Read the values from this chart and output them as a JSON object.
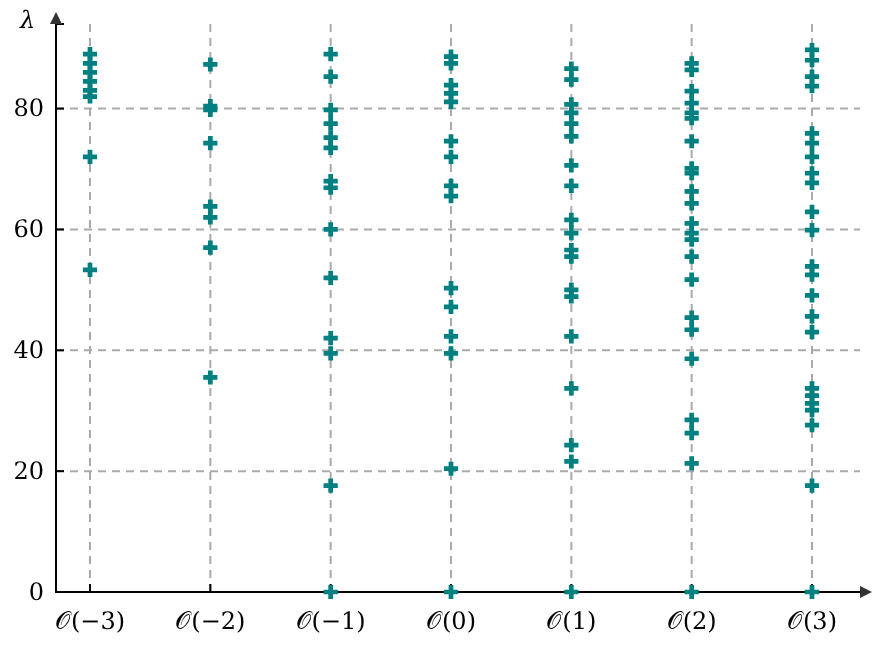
{
  "chart_data": {
    "type": "scatter",
    "ylabel": "λ",
    "categories": [
      "𝒪(−3)",
      "𝒪(−2)",
      "𝒪(−1)",
      "𝒪(0)",
      "𝒪(1)",
      "𝒪(2)",
      "𝒪(3)"
    ],
    "ylim": [
      0,
      94
    ],
    "yticks": [
      0,
      20,
      40,
      60,
      80
    ],
    "grid": true,
    "marker": "cross",
    "series": [
      {
        "color": "#008080",
        "x": [
          "𝒪(−3)",
          "𝒪(−3)",
          "𝒪(−3)",
          "𝒪(−3)",
          "𝒪(−3)",
          "𝒪(−3)",
          "𝒪(−3)",
          "𝒪(−3)",
          "𝒪(−2)",
          "𝒪(−2)",
          "𝒪(−2)",
          "𝒪(−2)",
          "𝒪(−2)",
          "𝒪(−2)",
          "𝒪(−2)",
          "𝒪(−2)",
          "𝒪(−1)",
          "𝒪(−1)",
          "𝒪(−1)",
          "𝒪(−1)",
          "𝒪(−1)",
          "𝒪(−1)",
          "𝒪(−1)",
          "𝒪(−1)",
          "𝒪(−1)",
          "𝒪(−1)",
          "𝒪(−1)",
          "𝒪(−1)",
          "𝒪(−1)",
          "𝒪(−1)",
          "𝒪(0)",
          "𝒪(0)",
          "𝒪(0)",
          "𝒪(0)",
          "𝒪(0)",
          "𝒪(0)",
          "𝒪(0)",
          "𝒪(0)",
          "𝒪(0)",
          "𝒪(0)",
          "𝒪(0)",
          "𝒪(0)",
          "𝒪(0)",
          "𝒪(0)",
          "𝒪(0)",
          "𝒪(1)",
          "𝒪(1)",
          "𝒪(1)",
          "𝒪(1)",
          "𝒪(1)",
          "𝒪(1)",
          "𝒪(1)",
          "𝒪(1)",
          "𝒪(1)",
          "𝒪(1)",
          "𝒪(1)",
          "𝒪(1)",
          "𝒪(1)",
          "𝒪(1)",
          "𝒪(1)",
          "𝒪(1)",
          "𝒪(1)",
          "𝒪(1)",
          "𝒪(1)",
          "𝒪(2)",
          "𝒪(2)",
          "𝒪(2)",
          "𝒪(2)",
          "𝒪(2)",
          "𝒪(2)",
          "𝒪(2)",
          "𝒪(2)",
          "𝒪(2)",
          "𝒪(2)",
          "𝒪(2)",
          "𝒪(2)",
          "𝒪(2)",
          "𝒪(2)",
          "𝒪(2)",
          "𝒪(2)",
          "𝒪(2)",
          "𝒪(2)",
          "𝒪(2)",
          "𝒪(2)",
          "𝒪(2)",
          "𝒪(2)",
          "𝒪(2)",
          "𝒪(3)",
          "𝒪(3)",
          "𝒪(3)",
          "𝒪(3)",
          "𝒪(3)",
          "𝒪(3)",
          "𝒪(3)",
          "𝒪(3)",
          "𝒪(3)",
          "𝒪(3)",
          "𝒪(3)",
          "𝒪(3)",
          "𝒪(3)",
          "𝒪(3)",
          "𝒪(3)",
          "𝒪(3)",
          "𝒪(3)",
          "𝒪(3)",
          "𝒪(3)",
          "𝒪(3)",
          "𝒪(3)",
          "𝒪(3)",
          "𝒪(3)"
        ],
        "values": [
          89,
          87.5,
          86,
          84.5,
          83,
          82,
          72,
          53.3,
          87.3,
          80.4,
          79.8,
          74.3,
          63.8,
          62,
          57,
          35.5,
          89,
          85.3,
          79.8,
          77.5,
          75.2,
          73.5,
          68,
          66.9,
          60,
          52,
          42,
          39.5,
          17.6,
          0,
          88.6,
          87.5,
          83.9,
          82.5,
          81.1,
          74.6,
          72,
          67.2,
          65.5,
          50.3,
          47.2,
          42.3,
          39.5,
          20.4,
          0,
          86.6,
          84.8,
          80.7,
          79.3,
          77.5,
          75.4,
          70.6,
          67.2,
          61.6,
          59.4,
          56.6,
          55.5,
          50,
          48.9,
          42.3,
          33.7,
          24.3,
          21.6,
          0,
          87.5,
          86.4,
          82.9,
          80.9,
          79.3,
          78.4,
          74.6,
          70.1,
          69.3,
          66.3,
          64.3,
          61,
          59.4,
          58.3,
          55.5,
          51.7,
          45.4,
          43.4,
          38.6,
          28.5,
          26.3,
          21.3,
          0,
          89.7,
          88,
          85.3,
          83.7,
          75.9,
          74.3,
          72,
          69.3,
          67.7,
          62.9,
          59.9,
          53.9,
          52.5,
          49.1,
          45.6,
          43,
          33.7,
          32.5,
          31.2,
          30.1,
          27.6,
          17.6,
          0
        ]
      }
    ]
  }
}
